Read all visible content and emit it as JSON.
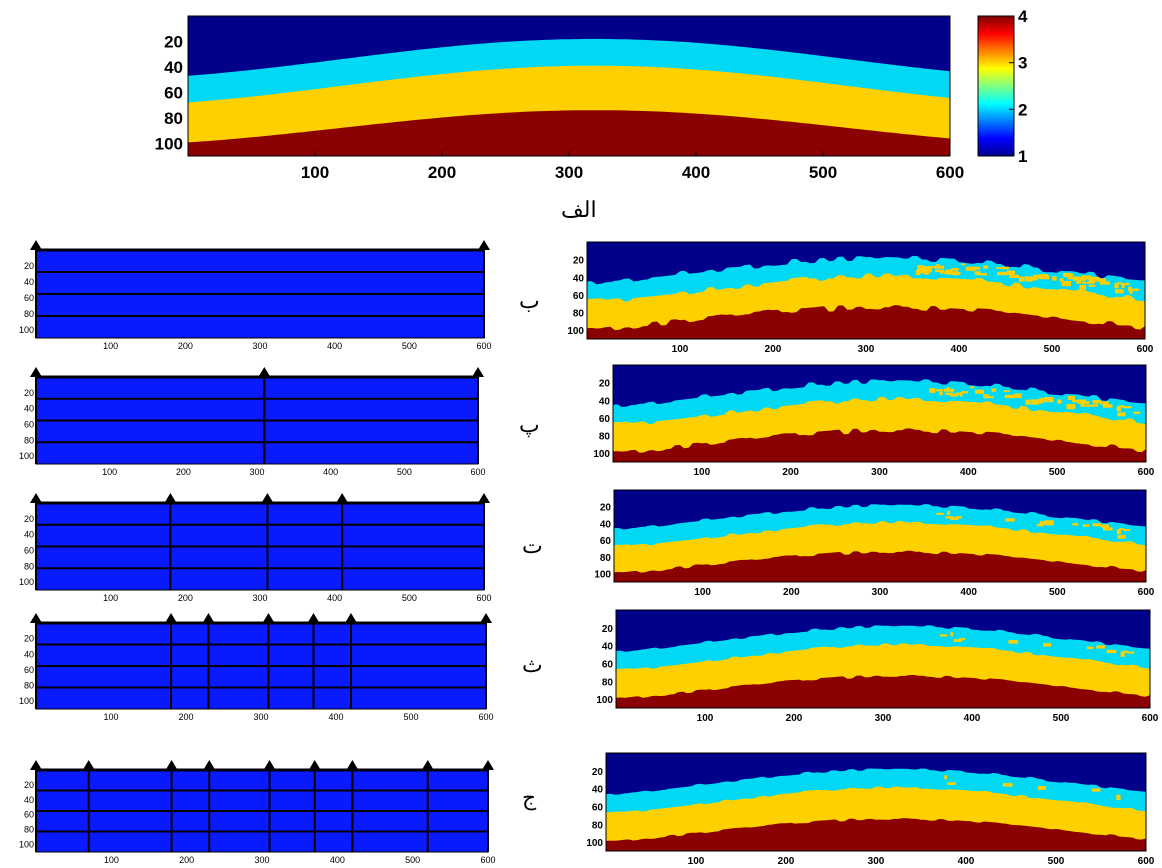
{
  "top_model": {
    "x_ticks": [
      "100",
      "200",
      "300",
      "400",
      "500",
      "600"
    ],
    "y_ticks": [
      "20",
      "40",
      "60",
      "80",
      "100"
    ],
    "colorbar_ticks": [
      "4",
      "3",
      "2",
      "1"
    ],
    "colors": [
      "#00008b",
      "#00d8f4",
      "#ffd000",
      "#8b0000"
    ],
    "label": "الف"
  },
  "colormap": [
    "#00008f",
    "#0000ff",
    "#0080ff",
    "#00ffff",
    "#80ff80",
    "#ffff00",
    "#ff8000",
    "#ff0000",
    "#800000"
  ],
  "grid_panels": [
    {
      "label": "ب",
      "x_ticks": [
        "100",
        "200",
        "300",
        "400",
        "500",
        "600"
      ],
      "y_ticks": [
        "20",
        "40",
        "60",
        "80",
        "100"
      ],
      "vertical_lines_at": []
    },
    {
      "label": "پ",
      "x_ticks": [
        "100",
        "200",
        "300",
        "400",
        "500",
        "600"
      ],
      "y_ticks": [
        "20",
        "40",
        "60",
        "80",
        "100"
      ],
      "vertical_lines_at": [
        310
      ]
    },
    {
      "label": "ت",
      "x_ticks": [
        "100",
        "200",
        "300",
        "400",
        "500",
        "600"
      ],
      "y_ticks": [
        "20",
        "40",
        "60",
        "80",
        "100"
      ],
      "vertical_lines_at": [
        180,
        310,
        410
      ]
    },
    {
      "label": "ث",
      "x_ticks": [
        "100",
        "200",
        "300",
        "400",
        "500",
        "600"
      ],
      "y_ticks": [
        "20",
        "40",
        "60",
        "80",
        "100"
      ],
      "vertical_lines_at": [
        180,
        230,
        310,
        370,
        420
      ]
    },
    {
      "label": "ج",
      "x_ticks": [
        "100",
        "200",
        "300",
        "400",
        "500",
        "600"
      ],
      "y_ticks": [
        "20",
        "40",
        "60",
        "80",
        "100"
      ],
      "vertical_lines_at": [
        70,
        180,
        230,
        310,
        370,
        420,
        520
      ]
    }
  ],
  "inverted_panels": [
    {
      "x_ticks": [
        "100",
        "200",
        "300",
        "400",
        "500",
        "600"
      ],
      "y_ticks": [
        "20",
        "40",
        "60",
        "80",
        "100"
      ]
    },
    {
      "x_ticks": [
        "100",
        "200",
        "300",
        "400",
        "500",
        "600"
      ],
      "y_ticks": [
        "20",
        "40",
        "60",
        "80",
        "100"
      ]
    },
    {
      "x_ticks": [
        "100",
        "200",
        "300",
        "400",
        "500",
        "600"
      ],
      "y_ticks": [
        "20",
        "40",
        "60",
        "80",
        "100"
      ]
    },
    {
      "x_ticks": [
        "100",
        "200",
        "300",
        "400",
        "500",
        "600"
      ],
      "y_ticks": [
        "20",
        "40",
        "60",
        "80",
        "100"
      ]
    },
    {
      "x_ticks": [
        "100",
        "200",
        "300",
        "400",
        "500",
        "600"
      ],
      "y_ticks": [
        "20",
        "40",
        "60",
        "80",
        "100"
      ]
    }
  ]
}
